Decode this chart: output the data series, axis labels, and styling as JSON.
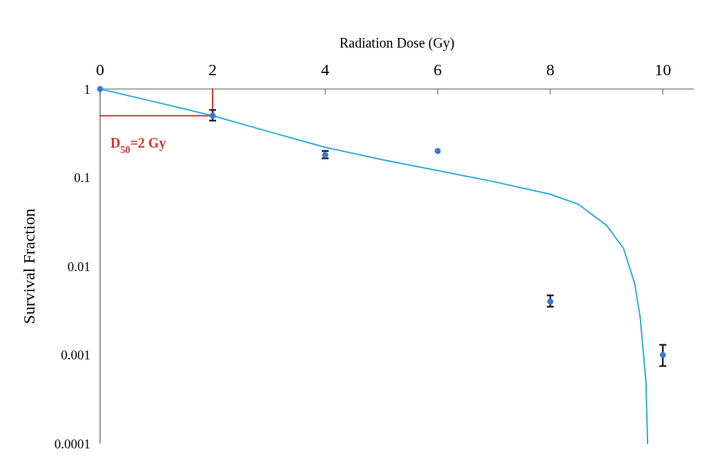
{
  "chart_data": {
    "type": "scatter",
    "xlabel": "Radiation Dose (Gy)",
    "ylabel": "Survival Fraction",
    "log": "y",
    "grid": false,
    "xlim": [
      0,
      10.55
    ],
    "xticks": [
      0,
      2,
      4,
      6,
      8,
      10
    ],
    "ylim": [
      0.0001,
      1
    ],
    "yticks": [
      0.0001,
      0.001,
      0.01,
      0.1,
      1
    ],
    "series": [
      {
        "type": "line",
        "color": "#d9342b",
        "x": [
          0,
          2,
          2
        ],
        "values": [
          0.5,
          0.5,
          1
        ],
        "marker": "none"
      },
      {
        "type": "line",
        "color": "#29abe2",
        "x": [
          0,
          1,
          2,
          3,
          4,
          5,
          6,
          7,
          8,
          8.5,
          9,
          9.3,
          9.5,
          9.6,
          9.7,
          9.73
        ],
        "values": [
          1,
          0.71,
          0.5,
          0.33,
          0.22,
          0.16,
          0.12,
          0.09,
          0.065,
          0.05,
          0.029,
          0.016,
          0.0064,
          0.0026,
          0.0005,
          0.0001
        ],
        "marker": "none"
      },
      {
        "color": "#3a78d4",
        "marker": "circle",
        "x": [
          0,
          2,
          4,
          6,
          8,
          10
        ],
        "values": [
          1,
          0.5,
          0.18,
          0.2,
          0.004,
          0.001
        ],
        "errors": [
          null,
          [
            0.44,
            0.58
          ],
          [
            0.165,
            0.2
          ],
          null,
          [
            0.0035,
            0.0047
          ],
          [
            0.00075,
            0.0013
          ]
        ]
      }
    ],
    "annotations": [
      "D$_{50}$=2 Gy"
    ]
  }
}
